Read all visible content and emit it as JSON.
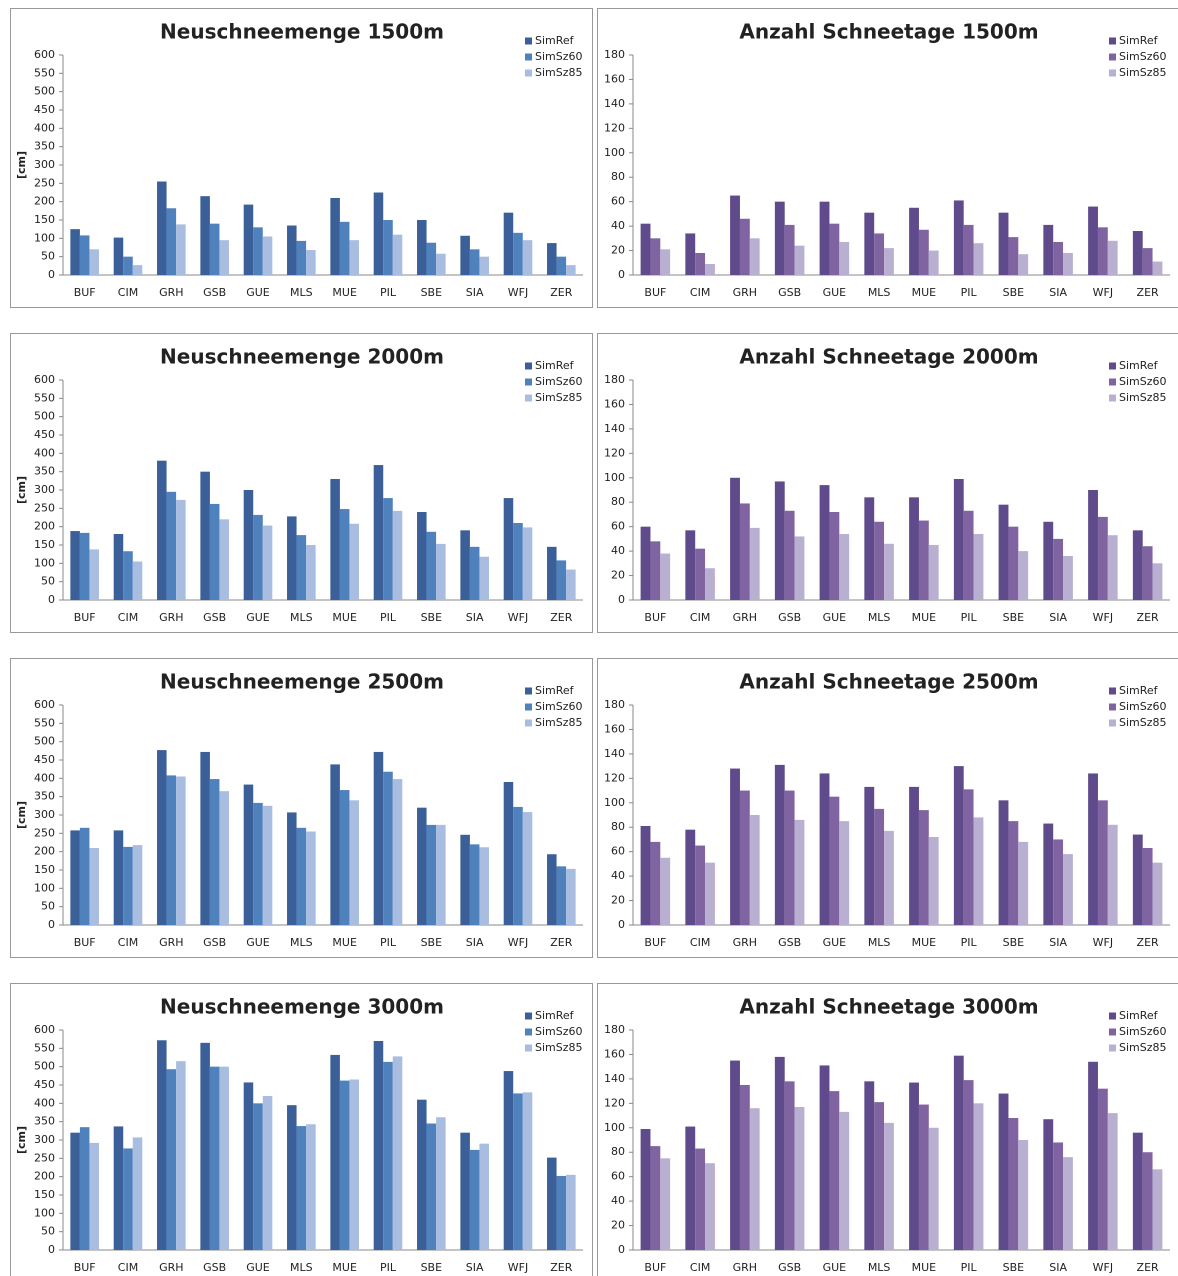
{
  "chart_data": [
    {
      "type": "bar",
      "title": "Neuschneemenge 1500m",
      "ylabel": "[cm]",
      "categories": [
        "BUF",
        "CIM",
        "GRH",
        "GSB",
        "GUE",
        "MLS",
        "MUE",
        "PIL",
        "SBE",
        "SIA",
        "WFJ",
        "ZER"
      ],
      "series": [
        {
          "name": "SimRef",
          "color": "#3b5f98",
          "values": [
            125,
            102,
            255,
            215,
            192,
            135,
            210,
            225,
            150,
            107,
            170,
            87
          ]
        },
        {
          "name": "SimSz60",
          "color": "#4f81bd",
          "values": [
            108,
            50,
            182,
            140,
            130,
            93,
            145,
            150,
            88,
            70,
            115,
            50
          ]
        },
        {
          "name": "SimSz85",
          "color": "#a8bde0",
          "values": [
            70,
            27,
            138,
            95,
            105,
            68,
            95,
            110,
            58,
            50,
            95,
            27
          ]
        }
      ],
      "ylim": [
        0,
        600
      ],
      "yticks": [
        0,
        50,
        100,
        150,
        200,
        250,
        300,
        350,
        400,
        450,
        500,
        550,
        600
      ],
      "grid": false
    },
    {
      "type": "bar",
      "title": "Anzahl Schneetage 1500m",
      "categories": [
        "BUF",
        "CIM",
        "GRH",
        "GSB",
        "GUE",
        "MLS",
        "MUE",
        "PIL",
        "SBE",
        "SIA",
        "WFJ",
        "ZER"
      ],
      "series": [
        {
          "name": "SimRef",
          "color": "#5f4a8b",
          "values": [
            42,
            34,
            65,
            60,
            60,
            51,
            55,
            61,
            51,
            41,
            56,
            36
          ]
        },
        {
          "name": "SimSz60",
          "color": "#8064a2",
          "values": [
            30,
            18,
            46,
            41,
            42,
            34,
            37,
            41,
            31,
            27,
            39,
            22
          ]
        },
        {
          "name": "SimSz85",
          "color": "#b9afd1",
          "values": [
            21,
            9,
            30,
            24,
            27,
            22,
            20,
            26,
            17,
            18,
            28,
            11
          ]
        }
      ],
      "ylim": [
        0,
        180
      ],
      "yticks": [
        0,
        20,
        40,
        60,
        80,
        100,
        120,
        140,
        160,
        180
      ],
      "grid": false
    },
    {
      "type": "bar",
      "title": "Neuschneemenge 2000m",
      "ylabel": "[cm]",
      "categories": [
        "BUF",
        "CIM",
        "GRH",
        "GSB",
        "GUE",
        "MLS",
        "MUE",
        "PIL",
        "SBE",
        "SIA",
        "WFJ",
        "ZER"
      ],
      "series": [
        {
          "name": "SimRef",
          "color": "#3b5f98",
          "values": [
            188,
            180,
            380,
            350,
            300,
            228,
            330,
            368,
            240,
            190,
            278,
            145
          ]
        },
        {
          "name": "SimSz60",
          "color": "#4f81bd",
          "values": [
            183,
            133,
            295,
            262,
            232,
            177,
            248,
            278,
            186,
            145,
            210,
            108
          ]
        },
        {
          "name": "SimSz85",
          "color": "#a8bde0",
          "values": [
            138,
            105,
            273,
            220,
            203,
            150,
            208,
            243,
            153,
            118,
            198,
            83
          ]
        }
      ],
      "ylim": [
        0,
        600
      ],
      "yticks": [
        0,
        50,
        100,
        150,
        200,
        250,
        300,
        350,
        400,
        450,
        500,
        550,
        600
      ],
      "grid": false
    },
    {
      "type": "bar",
      "title": "Anzahl Schneetage 2000m",
      "categories": [
        "BUF",
        "CIM",
        "GRH",
        "GSB",
        "GUE",
        "MLS",
        "MUE",
        "PIL",
        "SBE",
        "SIA",
        "WFJ",
        "ZER"
      ],
      "series": [
        {
          "name": "SimRef",
          "color": "#5f4a8b",
          "values": [
            60,
            57,
            100,
            97,
            94,
            84,
            84,
            99,
            78,
            64,
            90,
            57
          ]
        },
        {
          "name": "SimSz60",
          "color": "#8064a2",
          "values": [
            48,
            42,
            79,
            73,
            72,
            64,
            65,
            73,
            60,
            50,
            68,
            44
          ]
        },
        {
          "name": "SimSz85",
          "color": "#b9afd1",
          "values": [
            38,
            26,
            59,
            52,
            54,
            46,
            45,
            54,
            40,
            36,
            53,
            30
          ]
        }
      ],
      "ylim": [
        0,
        180
      ],
      "yticks": [
        0,
        20,
        40,
        60,
        80,
        100,
        120,
        140,
        160,
        180
      ],
      "grid": false
    },
    {
      "type": "bar",
      "title": "Neuschneemenge 2500m",
      "ylabel": "[cm]",
      "categories": [
        "BUF",
        "CIM",
        "GRH",
        "GSB",
        "GUE",
        "MLS",
        "MUE",
        "PIL",
        "SBE",
        "SIA",
        "WFJ",
        "ZER"
      ],
      "series": [
        {
          "name": "SimRef",
          "color": "#3b5f98",
          "values": [
            258,
            258,
            477,
            472,
            383,
            307,
            438,
            472,
            320,
            246,
            390,
            193
          ]
        },
        {
          "name": "SimSz60",
          "color": "#4f81bd",
          "values": [
            265,
            213,
            408,
            398,
            333,
            265,
            368,
            418,
            273,
            220,
            322,
            160
          ]
        },
        {
          "name": "SimSz85",
          "color": "#a8bde0",
          "values": [
            210,
            218,
            405,
            365,
            325,
            255,
            340,
            398,
            273,
            212,
            308,
            153
          ]
        }
      ],
      "ylim": [
        0,
        600
      ],
      "yticks": [
        0,
        50,
        100,
        150,
        200,
        250,
        300,
        350,
        400,
        450,
        500,
        550,
        600
      ],
      "grid": false
    },
    {
      "type": "bar",
      "title": "Anzahl Schneetage 2500m",
      "categories": [
        "BUF",
        "CIM",
        "GRH",
        "GSB",
        "GUE",
        "MLS",
        "MUE",
        "PIL",
        "SBE",
        "SIA",
        "WFJ",
        "ZER"
      ],
      "series": [
        {
          "name": "SimRef",
          "color": "#5f4a8b",
          "values": [
            81,
            78,
            128,
            131,
            124,
            113,
            113,
            130,
            102,
            83,
            124,
            74
          ]
        },
        {
          "name": "SimSz60",
          "color": "#8064a2",
          "values": [
            68,
            65,
            110,
            110,
            105,
            95,
            94,
            111,
            85,
            70,
            102,
            63
          ]
        },
        {
          "name": "SimSz85",
          "color": "#b9afd1",
          "values": [
            55,
            51,
            90,
            86,
            85,
            77,
            72,
            88,
            68,
            58,
            82,
            51
          ]
        }
      ],
      "ylim": [
        0,
        180
      ],
      "yticks": [
        0,
        20,
        40,
        60,
        80,
        100,
        120,
        140,
        160,
        180
      ],
      "grid": false
    },
    {
      "type": "bar",
      "title": "Neuschneemenge 3000m",
      "ylabel": "[cm]",
      "categories": [
        "BUF",
        "CIM",
        "GRH",
        "GSB",
        "GUE",
        "MLS",
        "MUE",
        "PIL",
        "SBE",
        "SIA",
        "WFJ",
        "ZER"
      ],
      "series": [
        {
          "name": "SimRef",
          "color": "#3b5f98",
          "values": [
            320,
            337,
            572,
            565,
            457,
            395,
            532,
            570,
            410,
            320,
            488,
            252
          ]
        },
        {
          "name": "SimSz60",
          "color": "#4f81bd",
          "values": [
            335,
            277,
            493,
            500,
            400,
            338,
            462,
            513,
            345,
            273,
            427,
            202
          ]
        },
        {
          "name": "SimSz85",
          "color": "#a8bde0",
          "values": [
            292,
            307,
            515,
            500,
            420,
            343,
            465,
            528,
            362,
            290,
            430,
            205
          ]
        }
      ],
      "ylim": [
        0,
        600
      ],
      "yticks": [
        0,
        50,
        100,
        150,
        200,
        250,
        300,
        350,
        400,
        450,
        500,
        550,
        600
      ],
      "grid": false
    },
    {
      "type": "bar",
      "title": "Anzahl Schneetage 3000m",
      "categories": [
        "BUF",
        "CIM",
        "GRH",
        "GSB",
        "GUE",
        "MLS",
        "MUE",
        "PIL",
        "SBE",
        "SIA",
        "WFJ",
        "ZER"
      ],
      "series": [
        {
          "name": "SimRef",
          "color": "#5f4a8b",
          "values": [
            99,
            101,
            155,
            158,
            151,
            138,
            137,
            159,
            128,
            107,
            154,
            96
          ]
        },
        {
          "name": "SimSz60",
          "color": "#8064a2",
          "values": [
            85,
            83,
            135,
            138,
            130,
            121,
            119,
            139,
            108,
            88,
            132,
            80
          ]
        },
        {
          "name": "SimSz85",
          "color": "#b9afd1",
          "values": [
            75,
            71,
            116,
            117,
            113,
            104,
            100,
            120,
            90,
            76,
            112,
            66
          ]
        }
      ],
      "ylim": [
        0,
        180
      ],
      "yticks": [
        0,
        20,
        40,
        60,
        80,
        100,
        120,
        140,
        160,
        180
      ],
      "grid": false
    }
  ]
}
